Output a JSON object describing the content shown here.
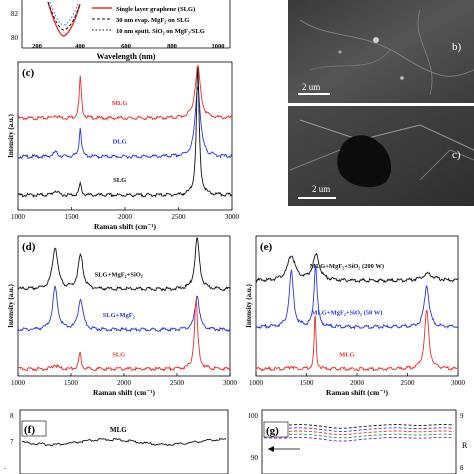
{
  "top_left": {
    "yticks": [
      "80",
      "82"
    ],
    "xlabel": "Wavelength (nm)",
    "xticks": [
      "200",
      "400",
      "600",
      "800",
      "1000"
    ],
    "legend": [
      "Single layer graphene (SLG)",
      "30 nm evap. MgF₂ on SLG",
      "10 nm sputt. SiO₂ on MgF₂/SLG"
    ]
  },
  "sem": {
    "b_label": "b)",
    "b_scale": "2 um",
    "c_label": "c)",
    "c_scale": "2 um"
  },
  "colors": {
    "red": "#e8302c",
    "blue": "#2a35e6",
    "black": "#111111"
  },
  "chart_data": [
    {
      "type": "line",
      "panel": "(c)",
      "xlabel": "Raman shift (cm⁻¹)",
      "ylabel": "Intensity (a.u.)",
      "xlim": [
        1000,
        3000
      ],
      "xticks": [
        "1000",
        "1500",
        "2000",
        "2500",
        "3000"
      ],
      "series": [
        {
          "name": "MLG",
          "color": "#e8302c",
          "offset": 0.62,
          "peaks": [
            [
              1350,
              0.02,
              25
            ],
            [
              1582,
              0.28,
              12
            ],
            [
              2680,
              0.35,
              30
            ]
          ]
        },
        {
          "name": "DLG",
          "color": "#2a35e6",
          "offset": 0.36,
          "peaks": [
            [
              1350,
              0.03,
              25
            ],
            [
              1582,
              0.2,
              12
            ],
            [
              2680,
              0.48,
              28
            ]
          ]
        },
        {
          "name": "SLG",
          "color": "#111111",
          "offset": 0.1,
          "peaks": [
            [
              1350,
              0.03,
              25
            ],
            [
              1582,
              0.08,
              12
            ],
            [
              2680,
              0.86,
              16
            ]
          ]
        }
      ]
    },
    {
      "type": "line",
      "panel": "(d)",
      "xlabel": "Raman shift (cm⁻¹)",
      "ylabel": "Intensity (a.u.)",
      "xlim": [
        1000,
        3000
      ],
      "xticks": [
        "1000",
        "1500",
        "2000",
        "2500",
        "3000"
      ],
      "series": [
        {
          "name": "SLG+MgF₂+SiO₂",
          "color": "#111111",
          "offset": 0.62,
          "peaks": [
            [
              1350,
              0.3,
              30
            ],
            [
              1590,
              0.24,
              28
            ],
            [
              2690,
              0.37,
              25
            ]
          ]
        },
        {
          "name": "SLG+MgF₂",
          "color": "#2a35e6",
          "offset": 0.33,
          "peaks": [
            [
              1350,
              0.3,
              28
            ],
            [
              1590,
              0.22,
              26
            ],
            [
              2690,
              0.25,
              24
            ]
          ]
        },
        {
          "name": "SLG",
          "color": "#e8302c",
          "offset": 0.05,
          "peaks": [
            [
              1350,
              0.03,
              25
            ],
            [
              1585,
              0.12,
              12
            ],
            [
              2680,
              0.5,
              18
            ]
          ]
        }
      ]
    },
    {
      "type": "line",
      "panel": "(e)",
      "xlabel": "Raman shift (cm⁻¹)",
      "ylabel": "Intensity (a.u.)",
      "xlim": [
        1000,
        3000
      ],
      "xticks": [
        "1000",
        "1500",
        "2000",
        "2500",
        "3000"
      ],
      "series": [
        {
          "name": "MLG+MgF₂+SiO₂ (200 W)",
          "color": "#111111",
          "offset": 0.68,
          "peaks": [
            [
              1350,
              0.18,
              45
            ],
            [
              1595,
              0.18,
              40
            ],
            [
              2700,
              0.05,
              70
            ]
          ]
        },
        {
          "name": "MLG+MgF₂+SiO₂ (50 W)",
          "color": "#2a35e6",
          "offset": 0.35,
          "peaks": [
            [
              1350,
              0.4,
              25
            ],
            [
              1590,
              0.45,
              18
            ],
            [
              2690,
              0.3,
              28
            ]
          ]
        },
        {
          "name": "MLG",
          "color": "#e8302c",
          "offset": 0.05,
          "peaks": [
            [
              1350,
              0.02,
              25
            ],
            [
              1585,
              0.4,
              10
            ],
            [
              2690,
              0.42,
              25
            ]
          ]
        }
      ]
    }
  ],
  "bottom_f": {
    "label": "(f)",
    "series": "MLG",
    "yticks": [
      "8",
      "7"
    ]
  },
  "bottom_g": {
    "label": "(g)",
    "yticks_left": [
      "100",
      "90"
    ],
    "yticks_right": [
      "9",
      "8"
    ],
    "right_axis_letter": "R"
  }
}
